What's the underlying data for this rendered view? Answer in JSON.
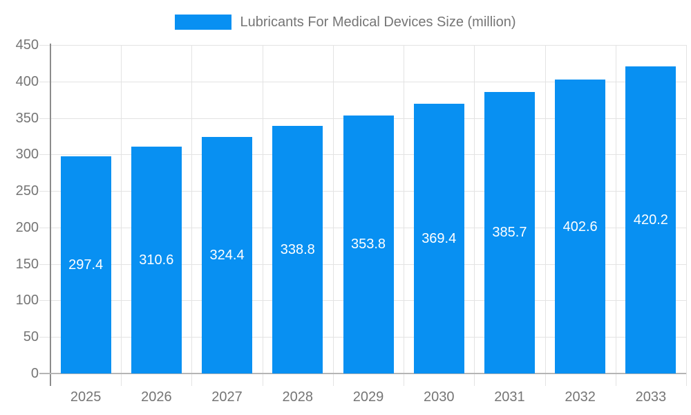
{
  "chart_data": {
    "type": "bar",
    "title": "Lubricants For Medical Devices Size (million)",
    "categories": [
      "2025",
      "2026",
      "2027",
      "2028",
      "2029",
      "2030",
      "2031",
      "2032",
      "2033"
    ],
    "values": [
      297.4,
      310.6,
      324.4,
      338.8,
      353.8,
      369.4,
      385.7,
      402.6,
      420.2
    ],
    "value_labels": [
      "297.4",
      "310.6",
      "324.4",
      "338.8",
      "353.8",
      "369.4",
      "385.7",
      "402.6",
      "420.2"
    ],
    "xlabel": "",
    "ylabel": "",
    "ylim": [
      0,
      450
    ],
    "yticks": [
      0,
      50,
      100,
      150,
      200,
      250,
      300,
      350,
      400,
      450
    ],
    "grid": true,
    "legend_position": "top-center",
    "colors": {
      "bar": "#0890F2",
      "value_text": "#FFFFFF",
      "axis_text": "#757575",
      "gridline": "#E3E3E3",
      "x_axis_line": "#B5B5B5",
      "y_axis_line": "#8C8C8C"
    }
  }
}
